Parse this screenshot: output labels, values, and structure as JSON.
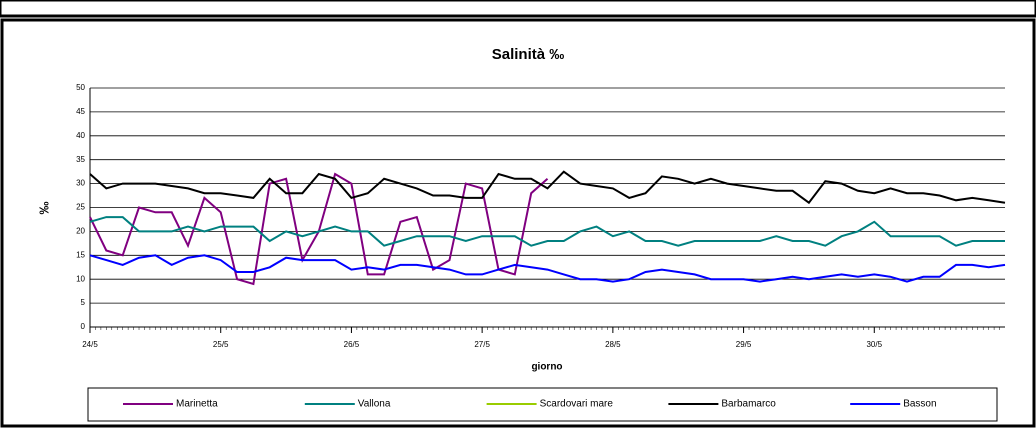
{
  "chart_data": {
    "type": "line",
    "title": "Salinità ‰",
    "x_label": "giorno",
    "y_label": "‰",
    "categories": [
      "24/5",
      null,
      null,
      null,
      null,
      null,
      null,
      null,
      "25/5",
      null,
      null,
      null,
      null,
      null,
      null,
      null,
      "26/5",
      null,
      null,
      null,
      null,
      null,
      null,
      null,
      "27/5",
      null,
      null,
      null,
      null,
      null,
      null,
      null,
      "28/5",
      null,
      null,
      null,
      null,
      null,
      null,
      null,
      "29/5",
      null,
      null,
      null,
      null,
      null,
      null,
      null,
      "30/5",
      null,
      null,
      null,
      null,
      null,
      null,
      null,
      null
    ],
    "ylim": [
      0,
      50
    ],
    "yticks": [
      0,
      5,
      10,
      15,
      20,
      25,
      30,
      35,
      40,
      45,
      50
    ],
    "grid": true,
    "legend": "bottom",
    "series": [
      {
        "name": "Marinetta",
        "color": "#800080",
        "values": [
          23,
          16,
          15,
          25,
          24,
          24,
          17,
          27,
          24,
          10,
          9,
          30,
          31,
          14,
          20,
          32,
          30,
          11,
          11,
          22,
          23,
          12,
          14,
          30,
          29,
          12,
          11,
          28,
          31,
          null,
          null,
          null,
          null,
          null,
          null,
          null,
          null,
          null,
          null,
          null,
          null,
          null,
          null,
          null,
          null,
          null,
          null,
          null,
          null,
          null,
          null,
          null,
          null,
          null,
          null,
          null,
          null
        ]
      },
      {
        "name": "Vallona",
        "color": "#008080",
        "values": [
          22,
          23,
          23,
          20,
          20,
          20,
          21,
          20,
          21,
          21,
          21,
          18,
          20,
          19,
          20,
          21,
          20,
          20,
          17,
          18,
          19,
          19,
          19,
          18,
          19,
          19,
          19,
          17,
          18,
          18,
          20,
          21,
          19,
          20,
          18,
          18,
          17,
          18,
          18,
          18,
          18,
          18,
          19,
          18,
          18,
          17,
          19,
          20,
          22,
          19,
          19,
          19,
          19,
          17,
          18,
          18,
          18
        ]
      },
      {
        "name": "Scardovari mare",
        "color": "#99cc00",
        "values": [
          null,
          null,
          null,
          null,
          null,
          null,
          null,
          null,
          null,
          null,
          null,
          null,
          null,
          null,
          null,
          null,
          null,
          null,
          null,
          null,
          null,
          null,
          null,
          null,
          null,
          null,
          null,
          null,
          null,
          null,
          null,
          null,
          null,
          null,
          null,
          null,
          null,
          null,
          null,
          null,
          null,
          null,
          null,
          null,
          null,
          null,
          null,
          null,
          null,
          null,
          null,
          null,
          null,
          null,
          null,
          null,
          null
        ]
      },
      {
        "name": "Barbamarco",
        "color": "#000000",
        "values": [
          32,
          29,
          30,
          30,
          30,
          29.5,
          29,
          28,
          28,
          27.5,
          27,
          31,
          28,
          28,
          32,
          31,
          27,
          28,
          31,
          30,
          29,
          27.5,
          27.5,
          27,
          27,
          32,
          31,
          31,
          29,
          32.5,
          30,
          29.5,
          29,
          27,
          28,
          31.5,
          31,
          30,
          31,
          30,
          29.5,
          29,
          28.5,
          28.5,
          26,
          30.5,
          30,
          28.5,
          28,
          29,
          28,
          28,
          27.5,
          26.5,
          27,
          26.5,
          26
        ]
      },
      {
        "name": "Basson",
        "color": "#0000ff",
        "values": [
          15,
          14,
          13,
          14.5,
          15,
          13,
          14.5,
          15,
          14,
          11.5,
          11.5,
          12.5,
          14.5,
          14,
          14,
          14,
          12,
          12.5,
          12,
          13,
          13,
          12.5,
          12,
          11,
          11,
          12,
          13,
          12.5,
          12,
          11,
          10,
          10,
          9.5,
          10,
          11.5,
          12,
          11.5,
          11,
          10,
          10,
          10,
          9.5,
          10,
          10.5,
          10,
          10.5,
          11,
          10.5,
          11,
          10.5,
          9.5,
          10.5,
          10.5,
          13,
          13,
          12.5,
          13
        ]
      }
    ]
  }
}
